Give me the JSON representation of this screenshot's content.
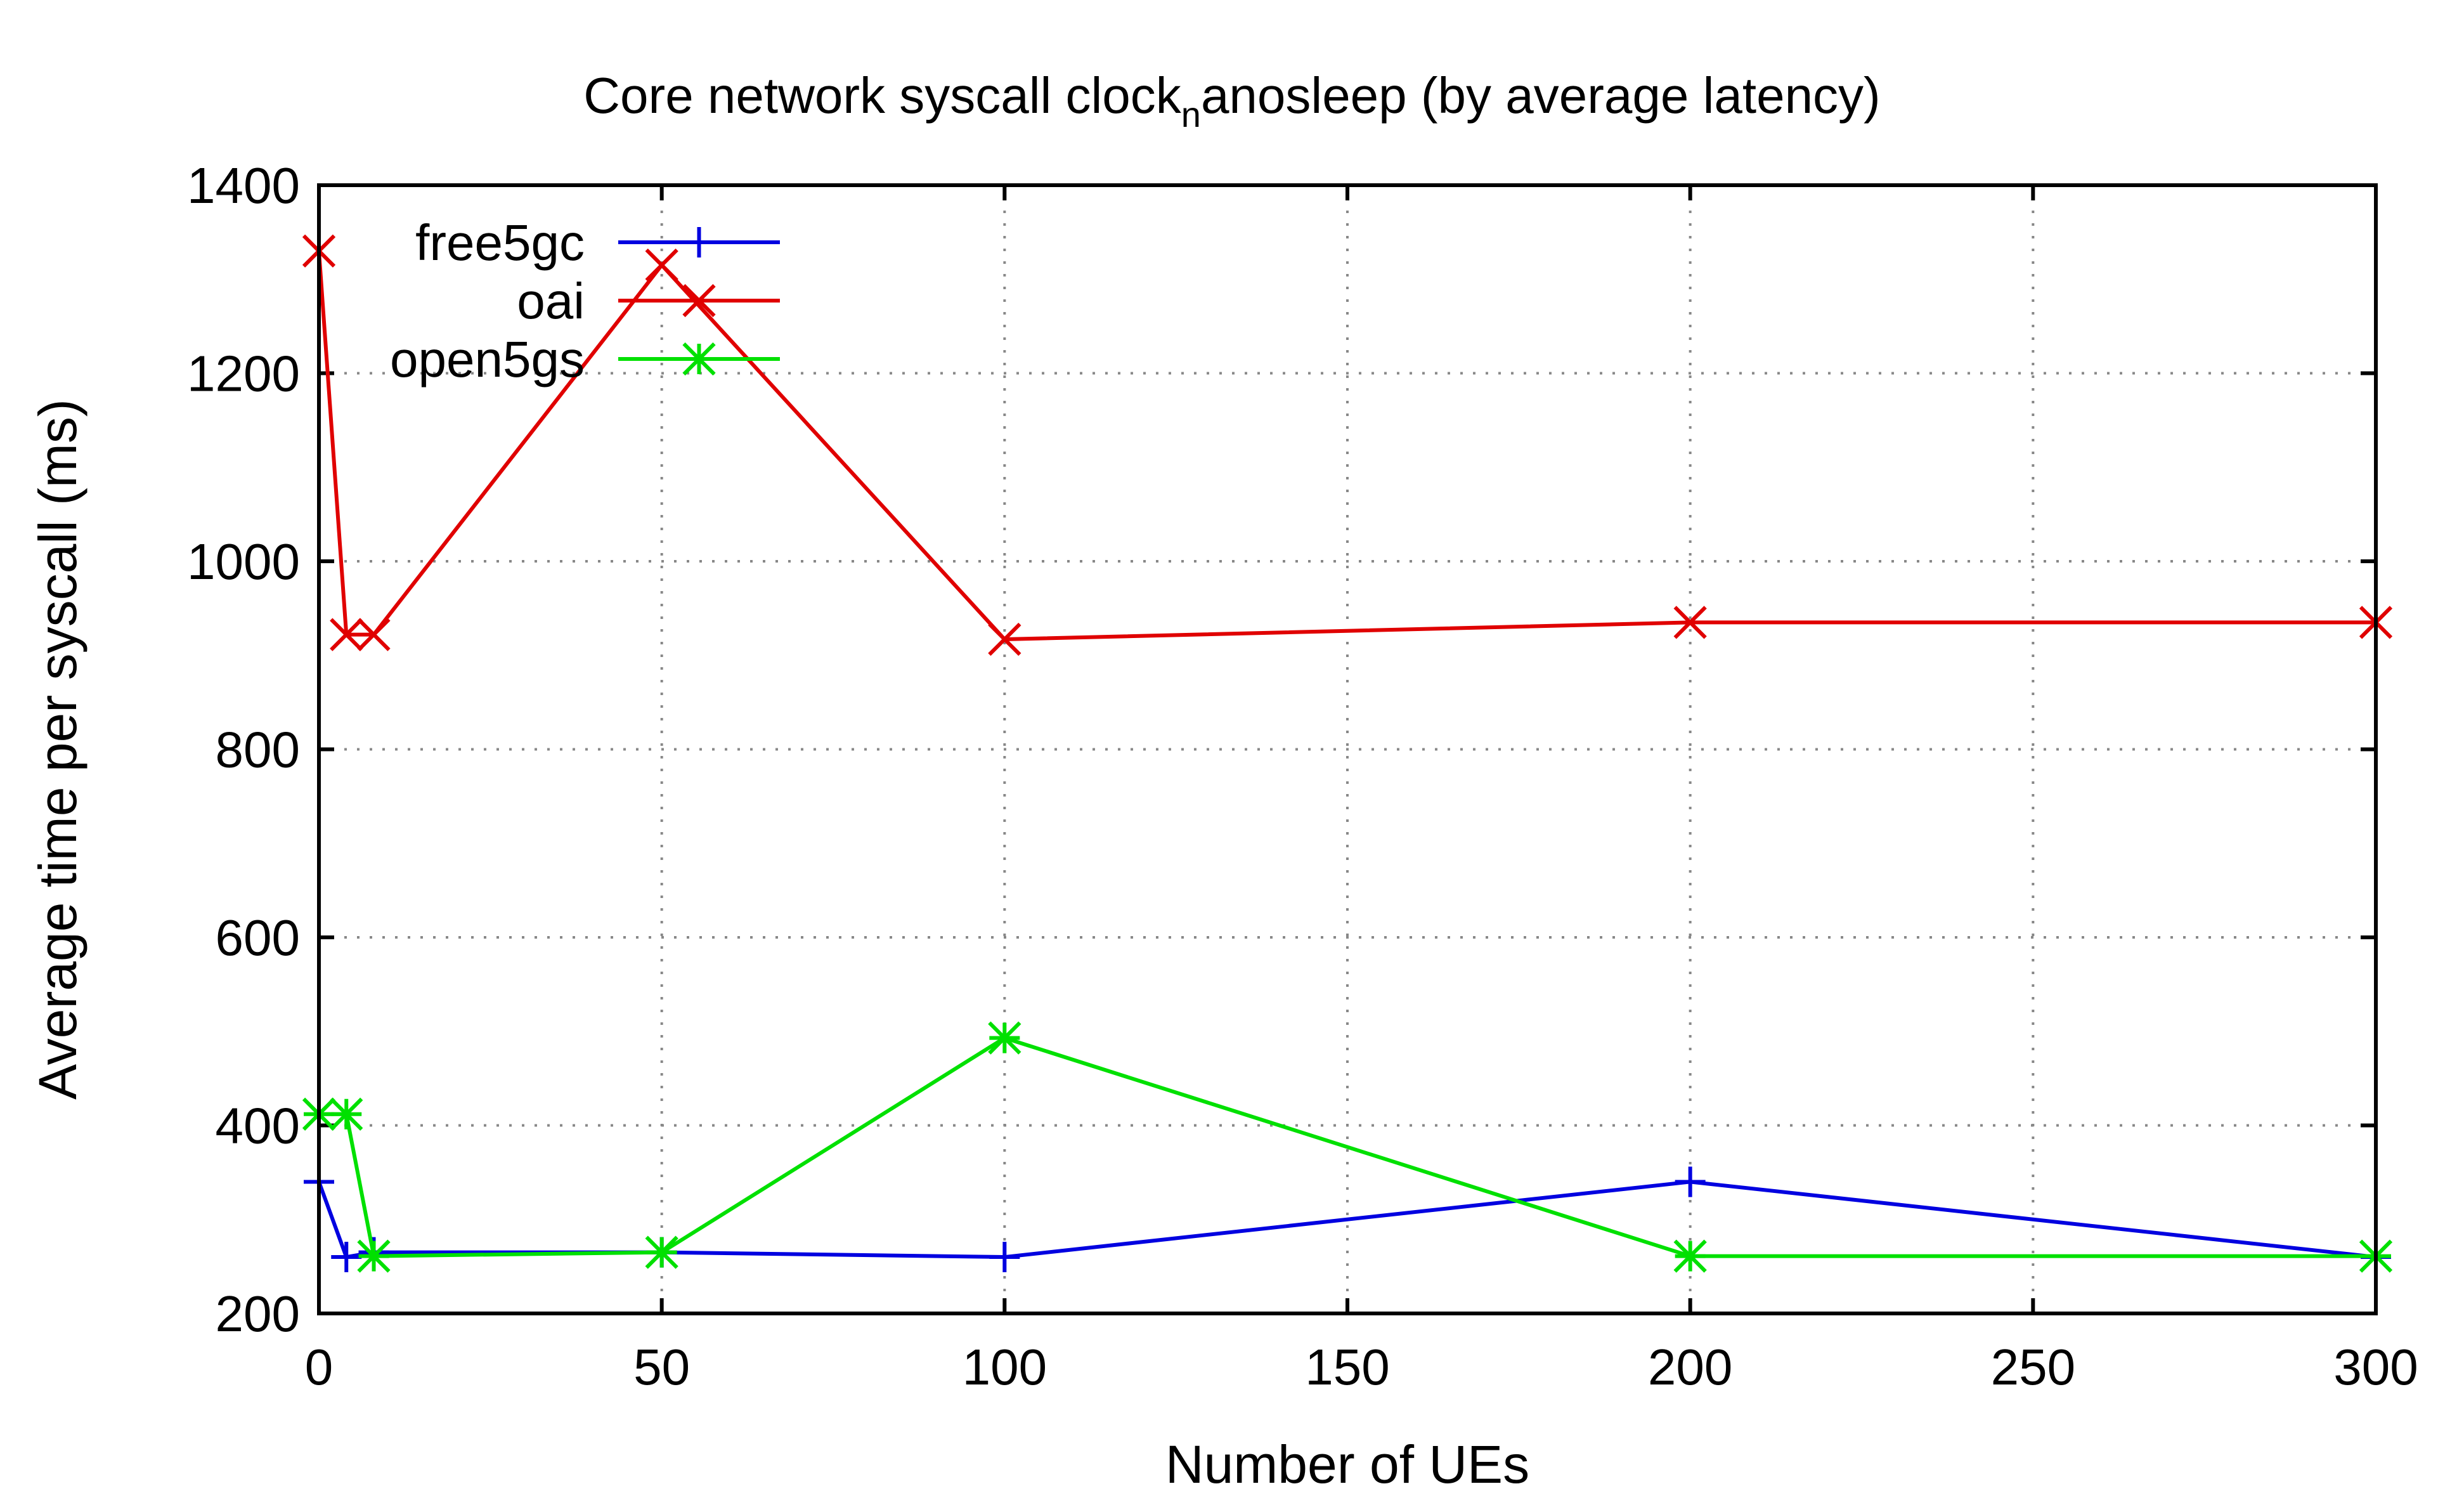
{
  "chart_data": {
    "type": "line",
    "title_main": "Core network syscall clock",
    "title_sub": "n",
    "title_rest": "anosleep (by average latency)",
    "xlabel": "Number of UEs",
    "ylabel": "Average time per syscall (ms)",
    "xlim": [
      0,
      300
    ],
    "ylim": [
      200,
      1400
    ],
    "xticks": [
      0,
      50,
      100,
      150,
      200,
      250,
      300
    ],
    "yticks": [
      200,
      400,
      600,
      800,
      1000,
      1200,
      1400
    ],
    "grid": true,
    "legend_position": "top-left",
    "series": [
      {
        "name": "free5gc",
        "color": "#0000e0",
        "marker": "plus",
        "x": [
          0,
          4,
          8,
          50,
          100,
          200,
          300
        ],
        "y": [
          340,
          260,
          265,
          265,
          260,
          340,
          260
        ]
      },
      {
        "name": "oai",
        "color": "#e00000",
        "marker": "cross",
        "x": [
          0,
          4,
          8,
          50,
          100,
          200,
          300
        ],
        "y": [
          1330,
          922,
          922,
          1315,
          917,
          935,
          935
        ]
      },
      {
        "name": "open5gs",
        "color": "#00e000",
        "marker": "star",
        "x": [
          0,
          4,
          8,
          50,
          100,
          200,
          300
        ],
        "y": [
          412,
          412,
          261,
          265,
          493,
          261,
          261
        ]
      }
    ]
  }
}
